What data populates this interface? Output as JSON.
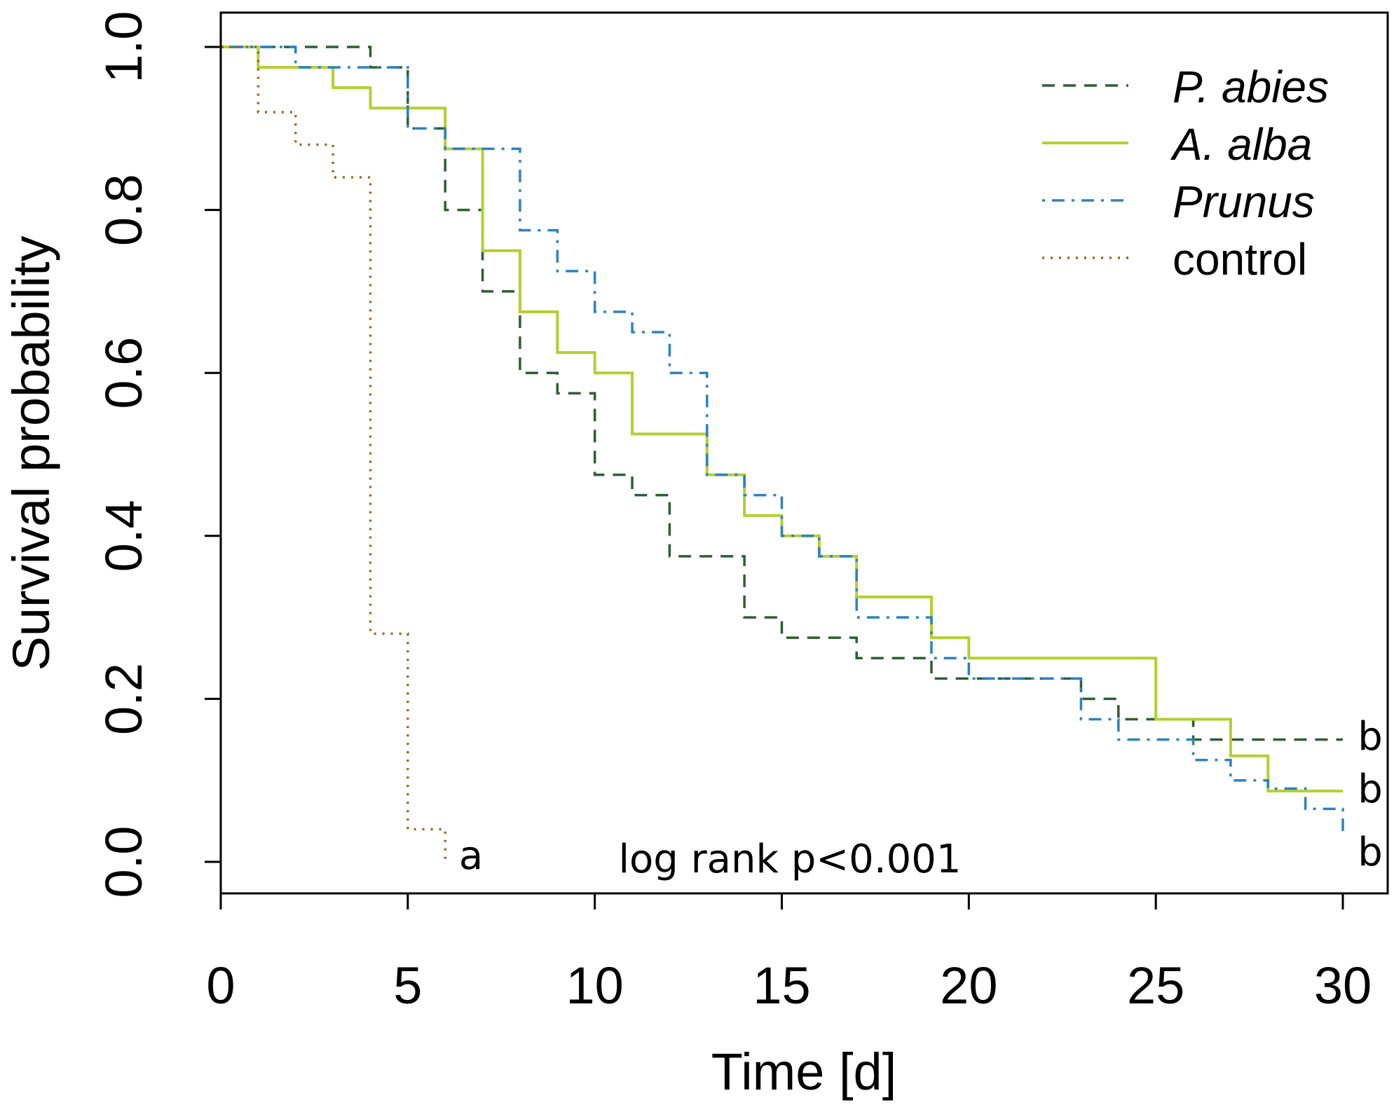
{
  "chart_data": {
    "type": "line",
    "step": true,
    "xlabel": "Time [d]",
    "ylabel": "Survival probability",
    "xlim": [
      0,
      30
    ],
    "ylim": [
      0,
      1
    ],
    "xticks": [
      0,
      5,
      10,
      15,
      20,
      25,
      30
    ],
    "xtick_labels": [
      "0",
      "5",
      "10",
      "15",
      "20",
      "25",
      "30"
    ],
    "yticks": [
      0,
      0.2,
      0.4,
      0.6,
      0.8,
      1.0
    ],
    "ytick_labels": [
      "0.0",
      "0.2",
      "0.4",
      "0.6",
      "0.8",
      "1.0"
    ],
    "annotation": "log rank p<0.001",
    "legend_position": "top-right",
    "series": [
      {
        "name": "P. abies",
        "italic": true,
        "color": "#2e5e33",
        "dash": "dashed",
        "group_label": "b",
        "steps": [
          [
            0,
            1.0
          ],
          [
            4,
            0.975
          ],
          [
            5,
            0.9
          ],
          [
            6,
            0.8
          ],
          [
            7,
            0.7
          ],
          [
            8,
            0.6
          ],
          [
            9,
            0.575
          ],
          [
            10,
            0.475
          ],
          [
            11,
            0.45
          ],
          [
            12,
            0.375
          ],
          [
            14,
            0.3
          ],
          [
            15,
            0.275
          ],
          [
            17,
            0.25
          ],
          [
            19,
            0.225
          ],
          [
            23,
            0.2
          ],
          [
            24,
            0.175
          ],
          [
            26,
            0.15
          ],
          [
            30,
            0.15
          ]
        ]
      },
      {
        "name": "A. alba",
        "italic": true,
        "color": "#b3cf31",
        "dash": "solid",
        "group_label": "b",
        "steps": [
          [
            0,
            1.0
          ],
          [
            1,
            0.975
          ],
          [
            3,
            0.95
          ],
          [
            4,
            0.925
          ],
          [
            6,
            0.875
          ],
          [
            7,
            0.75
          ],
          [
            8,
            0.675
          ],
          [
            9,
            0.625
          ],
          [
            10,
            0.6
          ],
          [
            11,
            0.525
          ],
          [
            13,
            0.475
          ],
          [
            14,
            0.425
          ],
          [
            15,
            0.4
          ],
          [
            16,
            0.375
          ],
          [
            17,
            0.325
          ],
          [
            19,
            0.275
          ],
          [
            20,
            0.25
          ],
          [
            23,
            0.25
          ],
          [
            25,
            0.175
          ],
          [
            27,
            0.13
          ],
          [
            28,
            0.087
          ],
          [
            30,
            0.087
          ]
        ]
      },
      {
        "name": "Prunus",
        "italic": true,
        "color": "#2b82c4",
        "dash": "dotdash",
        "group_label": "b",
        "steps": [
          [
            0,
            1.0
          ],
          [
            2,
            0.975
          ],
          [
            5,
            0.9
          ],
          [
            6,
            0.875
          ],
          [
            8,
            0.85
          ],
          [
            8,
            0.775
          ],
          [
            9,
            0.725
          ],
          [
            10,
            0.675
          ],
          [
            11,
            0.65
          ],
          [
            12,
            0.6
          ],
          [
            13,
            0.475
          ],
          [
            14,
            0.45
          ],
          [
            15,
            0.4
          ],
          [
            16,
            0.375
          ],
          [
            17,
            0.3
          ],
          [
            19,
            0.25
          ],
          [
            20,
            0.225
          ],
          [
            23,
            0.175
          ],
          [
            24,
            0.15
          ],
          [
            26,
            0.125
          ],
          [
            27,
            0.1
          ],
          [
            28,
            0.09
          ],
          [
            29,
            0.065
          ],
          [
            30,
            0.03
          ]
        ]
      },
      {
        "name": "control",
        "italic": false,
        "color": "#a0651e",
        "dash": "dotted",
        "group_label": "a",
        "steps": [
          [
            0,
            1.0
          ],
          [
            1,
            0.92
          ],
          [
            2,
            0.88
          ],
          [
            3,
            0.84
          ],
          [
            4,
            0.28
          ],
          [
            5,
            0.04
          ],
          [
            6,
            0.0
          ]
        ]
      }
    ]
  }
}
